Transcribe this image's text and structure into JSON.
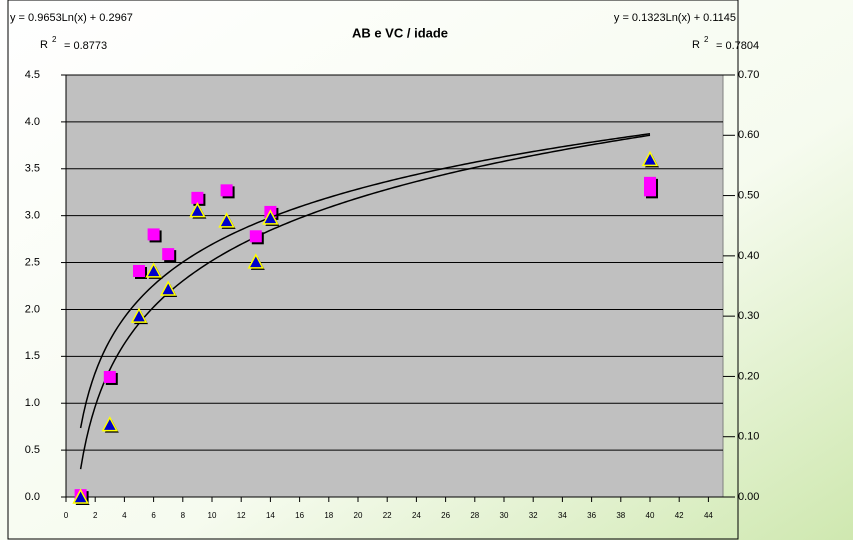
{
  "chart_data": {
    "type": "scatter",
    "title": "AB e VC / idade",
    "xlim": [
      0,
      45
    ],
    "xticks": [
      0,
      2,
      4,
      6,
      8,
      10,
      12,
      14,
      16,
      18,
      20,
      22,
      24,
      26,
      28,
      30,
      32,
      34,
      36,
      38,
      40,
      42,
      44
    ],
    "ylim": [
      0,
      4.5
    ],
    "yticks": [
      {
        "value": 0,
        "label": "0.0"
      },
      {
        "value": 0.5,
        "label": "0.5"
      },
      {
        "value": 1,
        "label": "1.0"
      },
      {
        "value": 1.5,
        "label": "1.5"
      },
      {
        "value": 2,
        "label": "2.0"
      },
      {
        "value": 2.5,
        "label": "2.5"
      },
      {
        "value": 3,
        "label": "3.0"
      },
      {
        "value": 3.5,
        "label": "3.5"
      },
      {
        "value": 4,
        "label": "4.0"
      },
      {
        "value": 4.5,
        "label": "4.5"
      }
    ],
    "y2lim": [
      0,
      0.7
    ],
    "y2ticks": [
      {
        "value": 0,
        "label": "0.00"
      },
      {
        "value": 0.1,
        "label": "0.10"
      },
      {
        "value": 0.2,
        "label": "0.20"
      },
      {
        "value": 0.3,
        "label": "0.30"
      },
      {
        "value": 0.4,
        "label": "0.40"
      },
      {
        "value": 0.5,
        "label": "0.50"
      },
      {
        "value": 0.6,
        "label": "0.60"
      },
      {
        "value": 0.7,
        "label": "0.70"
      }
    ],
    "grid": true,
    "series": [
      {
        "color": "#ff00ff",
        "marker": "square",
        "axis": "y",
        "x": [
          1,
          3,
          5,
          6,
          7,
          9,
          11,
          13,
          14,
          40,
          40
        ],
        "values": [
          0.02,
          1.28,
          2.41,
          2.8,
          2.59,
          3.19,
          3.27,
          2.78,
          3.04,
          3.35,
          3.27
        ],
        "trendline": {
          "type": "log",
          "slope": 0.9653,
          "intercept": 0.2967,
          "equation": "y = 0.9653Ln(x) + 0.2967",
          "r2_symbol": "R",
          "r2_exp": "2",
          "r2_text": "= 0.8773"
        }
      },
      {
        "color": "#0000cc",
        "marker": "triangle",
        "axis": "y2",
        "x": [
          1,
          3,
          5,
          6,
          7,
          9,
          11,
          13,
          14,
          40
        ],
        "values": [
          0,
          0.12,
          0.3,
          0.375,
          0.345,
          0.475,
          0.458,
          0.39,
          0.463,
          0.56
        ],
        "trendline": {
          "type": "log",
          "slope": 0.1323,
          "intercept": 0.1145,
          "equation": "y = 0.1323Ln(x) + 0.1145",
          "r2_symbol": "R",
          "r2_exp": "2",
          "r2_text": "= 0.7804"
        }
      }
    ]
  }
}
